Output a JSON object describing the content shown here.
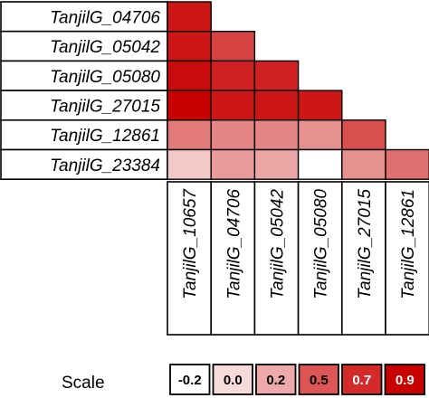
{
  "chart_data": {
    "type": "heatmap",
    "rows": [
      "TanjilG_04706",
      "TanjilG_05042",
      "TanjilG_05080",
      "TanjilG_27015",
      "TanjilG_12861",
      "TanjilG_23384"
    ],
    "columns": [
      "TanjilG_10657",
      "TanjilG_04706",
      "TanjilG_05042",
      "TanjilG_05080",
      "TanjilG_27015",
      "TanjilG_12861"
    ],
    "values": [
      [
        0.85
      ],
      [
        0.85,
        0.65
      ],
      [
        0.9,
        0.8,
        0.8
      ],
      [
        0.95,
        0.85,
        0.85,
        0.85
      ],
      [
        0.4,
        0.35,
        0.35,
        0.3,
        0.6
      ],
      [
        0.05,
        0.25,
        0.2,
        -0.2,
        0.3,
        0.45
      ]
    ],
    "layout": "lower-triangle",
    "scale": {
      "title": "Scale",
      "values": [
        "-0.2",
        "0.0",
        "0.2",
        "0.5",
        "0.7",
        "0.9"
      ],
      "colors": [
        "#ffffff",
        "#f7dada",
        "#eeaaaa",
        "#dd5555",
        "#d42a2a",
        "#c80000"
      ],
      "text_colors": [
        "#000000",
        "#000000",
        "#000000",
        "#000000",
        "#ffffff",
        "#ffffff"
      ]
    },
    "color_low": "#ffffff",
    "color_high": "#c80000"
  }
}
